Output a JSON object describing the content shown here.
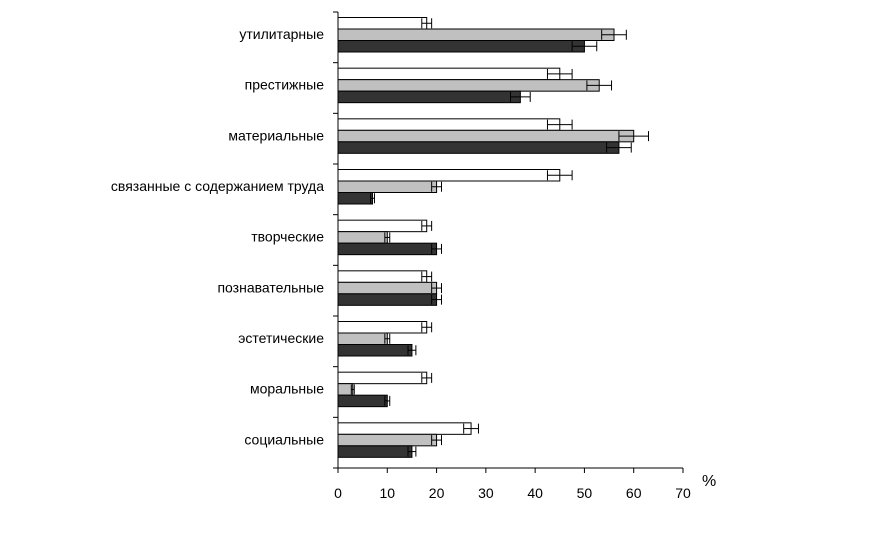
{
  "chart_data": {
    "type": "bar",
    "orientation": "horizontal",
    "categories": [
      "утилитарные",
      "престижные",
      "материальные",
      "связанные с содержанием труда",
      "творческие",
      "познавательные",
      "эстетические",
      "моральные",
      "социальные"
    ],
    "series": [
      {
        "values": [
          18,
          45,
          45,
          45,
          18,
          18,
          18,
          18,
          27
        ],
        "errors": [
          1,
          2.5,
          2.5,
          2.5,
          1,
          1,
          1,
          1,
          1.5
        ]
      },
      {
        "values": [
          56,
          53,
          60,
          20,
          10,
          20,
          10,
          3,
          20
        ],
        "errors": [
          2.5,
          2.5,
          3,
          1,
          0.5,
          1,
          0.5,
          0.3,
          1
        ]
      },
      {
        "values": [
          50,
          37,
          57,
          7,
          20,
          20,
          15,
          10,
          15
        ],
        "errors": [
          2.5,
          2,
          2.5,
          0.4,
          1,
          1,
          0.8,
          0.5,
          0.8
        ]
      }
    ],
    "colors": [
      "#ffffff",
      "#c0c0c0",
      "#333333"
    ],
    "xlim": [
      0,
      70
    ],
    "xticks": [
      0,
      10,
      20,
      30,
      40,
      50,
      60,
      70
    ],
    "unit_label": "%",
    "grid": false
  }
}
